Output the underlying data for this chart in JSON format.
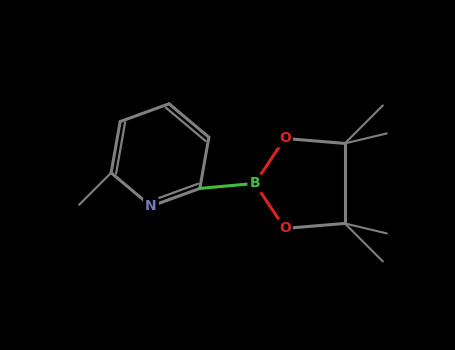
{
  "background_color": "#000000",
  "bond_color": "#808080",
  "nitrogen_color": "#7777bb",
  "oxygen_color": "#dd2222",
  "boron_color": "#44bb44",
  "figsize": [
    4.55,
    3.5
  ],
  "dpi": 100,
  "xlim": [
    0,
    455
  ],
  "ylim": [
    0,
    350
  ]
}
